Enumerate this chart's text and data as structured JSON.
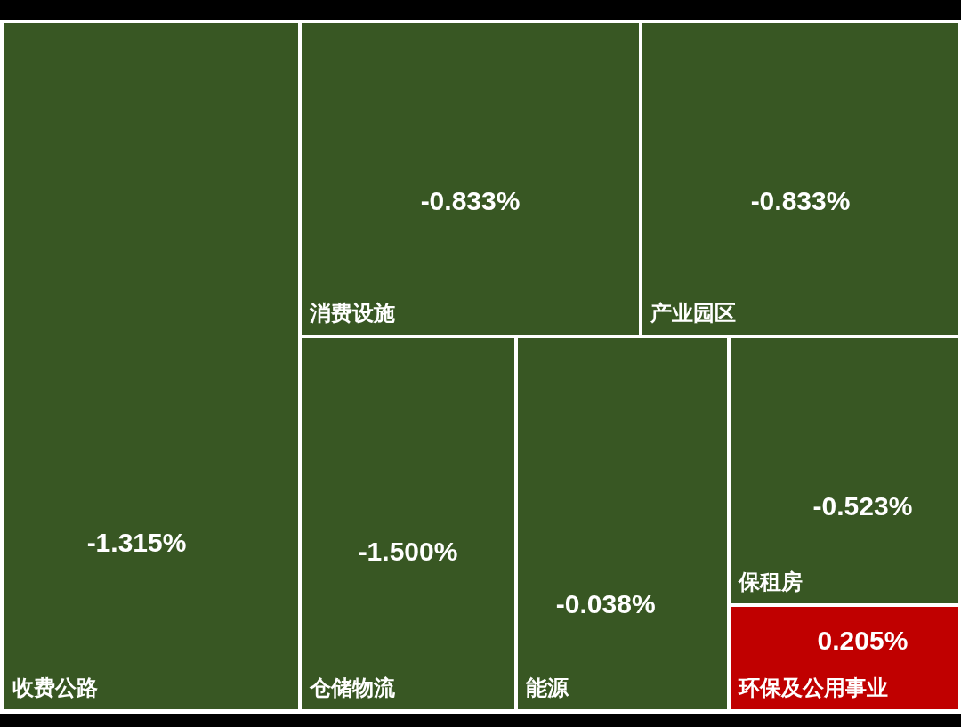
{
  "chart_data": {
    "type": "other",
    "categories": [
      "收费公路",
      "消费设施",
      "产业园区",
      "仓储物流",
      "能源",
      "保租房",
      "环保及公用事业"
    ],
    "values": [
      -1.315,
      -0.833,
      -0.833,
      -1.5,
      -0.038,
      -0.523,
      0.205
    ],
    "value_labels": [
      "-1.315%",
      "-0.833%",
      "-0.833%",
      "-1.500%",
      "-0.038%",
      "-0.523%",
      "0.205%"
    ]
  }
}
